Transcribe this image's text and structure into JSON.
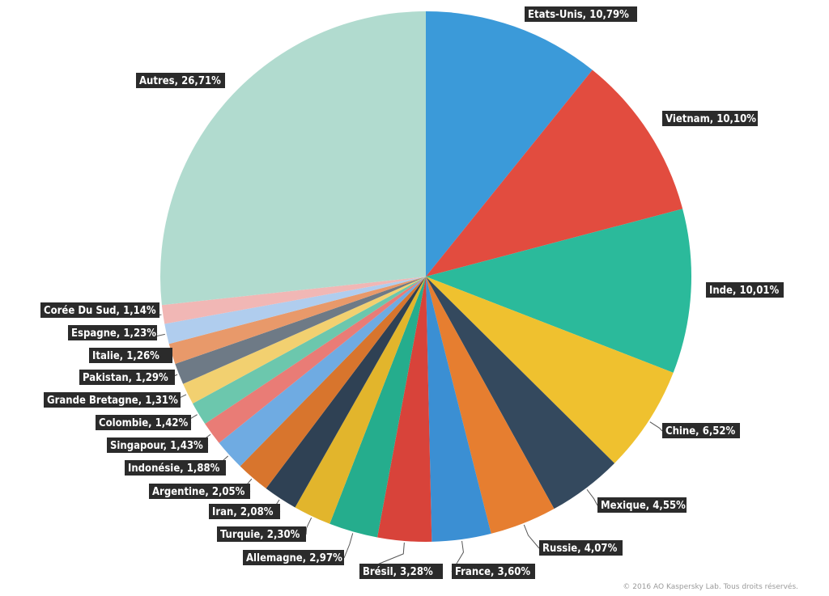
{
  "chart_data": {
    "type": "pie",
    "slices": [
      {
        "label": "Etats-Unis",
        "value": 10.79,
        "text": "Etats-Unis, 10,79%",
        "color": "#3b9ad9"
      },
      {
        "label": "Vietnam",
        "value": 10.1,
        "text": "Vietnam, 10,10%",
        "color": "#e24c3f"
      },
      {
        "label": "Inde",
        "value": 10.01,
        "text": "Inde, 10,01%",
        "color": "#2bba9b"
      },
      {
        "label": "Chine",
        "value": 6.52,
        "text": "Chine, 6,52%",
        "color": "#efc12f"
      },
      {
        "label": "Mexique",
        "value": 4.55,
        "text": "Mexique, 4,55%",
        "color": "#34495e"
      },
      {
        "label": "Russie",
        "value": 4.07,
        "text": "Russie, 4,07%",
        "color": "#e67e30"
      },
      {
        "label": "France",
        "value": 3.6,
        "text": "France, 3,60%",
        "color": "#3b8fd3"
      },
      {
        "label": "Brésil",
        "value": 3.28,
        "text": "Brésil, 3,28%",
        "color": "#d8433a"
      },
      {
        "label": "Allemagne",
        "value": 2.97,
        "text": "Allemagne, 2,97%",
        "color": "#25ad8d"
      },
      {
        "label": "Turquie",
        "value": 2.3,
        "text": "Turquie, 2,30%",
        "color": "#e2b52c"
      },
      {
        "label": "Iran",
        "value": 2.08,
        "text": "Iran, 2,08%",
        "color": "#2f4154"
      },
      {
        "label": "Argentine",
        "value": 2.05,
        "text": "Argentine, 2,05%",
        "color": "#d8752d"
      },
      {
        "label": "Indonésie",
        "value": 1.88,
        "text": "Indonésie, 1,88%",
        "color": "#6fabe2"
      },
      {
        "label": "Singapour",
        "value": 1.43,
        "text": "Singapour, 1,43%",
        "color": "#e97c76"
      },
      {
        "label": "Colombie",
        "value": 1.42,
        "text": "Colombie, 1,42%",
        "color": "#6cc7ad"
      },
      {
        "label": "Grande Bretagne",
        "value": 1.31,
        "text": "Grande Bretagne, 1,31%",
        "color": "#f2d070"
      },
      {
        "label": "Pakistan",
        "value": 1.29,
        "text": "Pakistan, 1,29%",
        "color": "#6e7a86"
      },
      {
        "label": "Italie",
        "value": 1.26,
        "text": "Italie, 1,26%",
        "color": "#e8996a"
      },
      {
        "label": "Espagne",
        "value": 1.23,
        "text": "Espagne, 1,23%",
        "color": "#b0cdee"
      },
      {
        "label": "Corée Du Sud",
        "value": 1.14,
        "text": "Corée Du Sud, 1,14%",
        "color": "#f1b7b5"
      },
      {
        "label": "Autres",
        "value": 26.71,
        "text": "Autres, 26,71%",
        "color": "#b1dbcf"
      }
    ]
  },
  "copyright": "© 2016 AO Kaspersky Lab. Tous droits réservés."
}
